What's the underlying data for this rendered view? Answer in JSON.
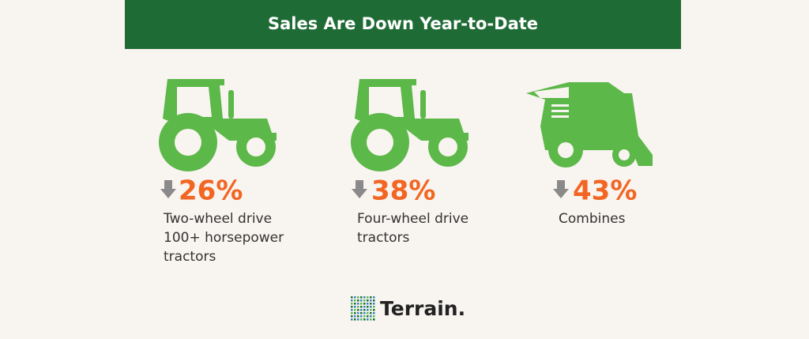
{
  "header": {
    "title": "Sales Are Down Year-to-Date"
  },
  "items": [
    {
      "value": "26%",
      "label": [
        "Two-wheel drive",
        "100+ horsepower",
        "tractors"
      ]
    },
    {
      "value": "38%",
      "label": [
        "Four-wheel drive",
        "tractors"
      ]
    },
    {
      "value": "43%",
      "label": [
        "Combines"
      ]
    }
  ],
  "logo": {
    "name": "Terrain."
  }
}
